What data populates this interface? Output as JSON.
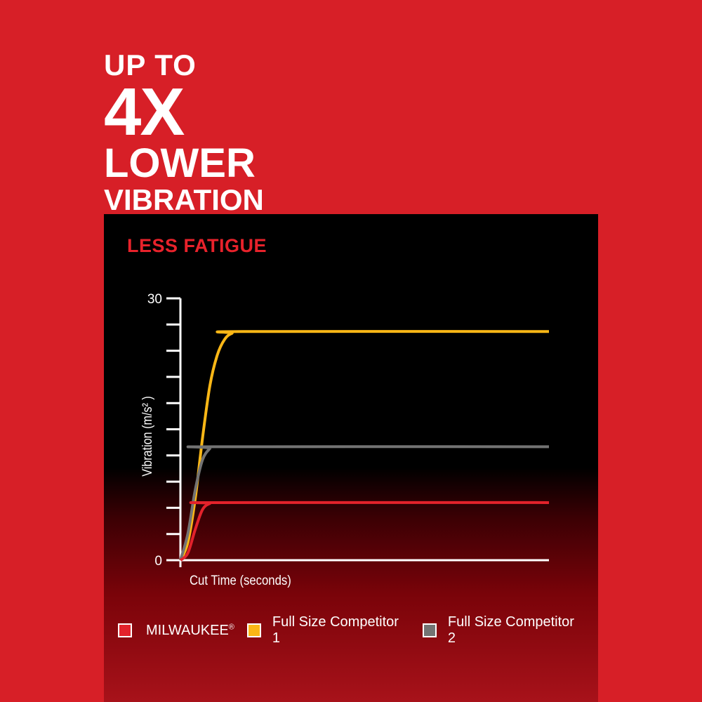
{
  "headline": {
    "line1": "UP TO",
    "line2": "4X",
    "line3": "LOWER",
    "line4": "VIBRATION"
  },
  "chart_data": {
    "type": "line",
    "title": "LESS FATIGUE",
    "xlabel": "Cut Time (seconds)",
    "ylabel": "Vibration (m/s² )",
    "ylim": [
      0,
      30
    ],
    "xlim": [
      0,
      100
    ],
    "y_tick_labels": [
      "0",
      "30"
    ],
    "y_tick_step": 3,
    "grid": false,
    "legend_position": "bottom",
    "series": [
      {
        "name": "MILWAUKEE®",
        "color": "#e3222b",
        "points": [
          [
            0,
            0
          ],
          [
            2,
            0.8
          ],
          [
            4,
            3.5
          ],
          [
            6,
            5.8
          ],
          [
            8,
            6.5
          ],
          [
            10,
            6.6
          ],
          [
            100,
            6.6
          ]
        ]
      },
      {
        "name": "Full Size Competitor 1",
        "color": "#fbb716",
        "points": [
          [
            0,
            0
          ],
          [
            2,
            2
          ],
          [
            4,
            7
          ],
          [
            6,
            14
          ],
          [
            8,
            20
          ],
          [
            10,
            23.5
          ],
          [
            12,
            25.3
          ],
          [
            14,
            26
          ],
          [
            17,
            26.2
          ],
          [
            100,
            26.2
          ]
        ]
      },
      {
        "name": "Full Size Competitor 2",
        "color": "#737373",
        "points": [
          [
            0,
            0
          ],
          [
            2,
            3
          ],
          [
            4,
            8
          ],
          [
            6,
            11.5
          ],
          [
            8,
            12.8
          ],
          [
            9,
            13
          ],
          [
            100,
            13
          ]
        ]
      }
    ]
  },
  "legend": {
    "milwaukee": "MILWAUKEE",
    "registered": "®",
    "comp1": "Full Size Competitor 1",
    "comp2": "Full Size Competitor 2"
  }
}
